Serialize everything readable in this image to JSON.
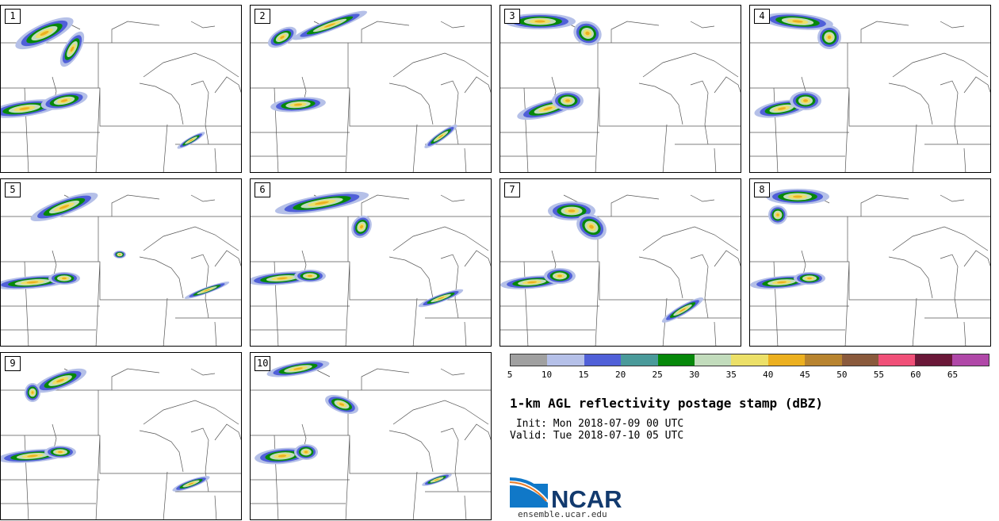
{
  "panels": [
    {
      "label": "1"
    },
    {
      "label": "2"
    },
    {
      "label": "3"
    },
    {
      "label": "4"
    },
    {
      "label": "5"
    },
    {
      "label": "6"
    },
    {
      "label": "7"
    },
    {
      "label": "8"
    },
    {
      "label": "9"
    },
    {
      "label": "10"
    }
  ],
  "colorbar": {
    "ticks": [
      "5",
      "10",
      "15",
      "20",
      "25",
      "30",
      "35",
      "40",
      "45",
      "50",
      "55",
      "60",
      "65"
    ],
    "colors": [
      "#a0a0a0",
      "#b5c0e8",
      "#5060d8",
      "#4a9a9a",
      "#06880a",
      "#c2dcbc",
      "#ece068",
      "#ecb020",
      "#b88430",
      "#8a5a3c",
      "#f05078",
      "#6a1838",
      "#b048a8"
    ]
  },
  "title": "1-km AGL reflectivity postage stamp (dBZ)",
  "init_line": " Init: Mon 2018-07-09 00 UTC",
  "valid_line": "Valid: Tue 2018-07-10 05 UTC",
  "logo_text": "NCAR",
  "site": "ensemble.ucar.edu"
}
